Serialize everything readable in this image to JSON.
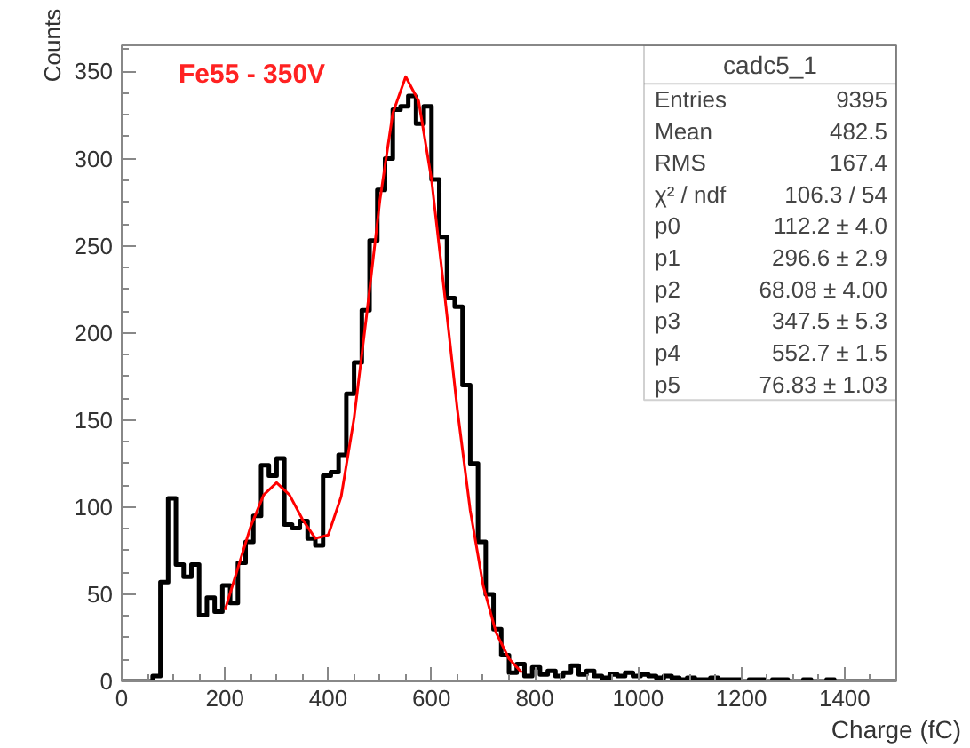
{
  "chart_data": {
    "type": "histogram",
    "xlabel": "Charge (fC)",
    "ylabel": "Counts",
    "bins": [
      0,
      15,
      30,
      45,
      60,
      75,
      90,
      105,
      120,
      135,
      150,
      165,
      180,
      195,
      210,
      225,
      240,
      255,
      270,
      285,
      300,
      315,
      330,
      345,
      360,
      375,
      390,
      405,
      420,
      435,
      450,
      465,
      480,
      495,
      510,
      525,
      540,
      555,
      570,
      585,
      600,
      615,
      630,
      645,
      660,
      675,
      690,
      705,
      720,
      735,
      750,
      765,
      780,
      795,
      810,
      825,
      840,
      855,
      870,
      885,
      900,
      915,
      930,
      945,
      960,
      975,
      990,
      1005,
      1020,
      1035,
      1050,
      1065,
      1080,
      1095,
      1110,
      1125,
      1140,
      1155,
      1170,
      1185,
      1200,
      1215,
      1230,
      1245,
      1260,
      1275,
      1290,
      1305,
      1320,
      1335,
      1350,
      1365,
      1380,
      1395,
      1410,
      1425,
      1440,
      1455,
      1470,
      1485,
      1500
    ],
    "series": [
      {
        "color": "#000000",
        "values": [
          0,
          0,
          0,
          0,
          3,
          57,
          105,
          67,
          60,
          67,
          38,
          48,
          40,
          55,
          45,
          68,
          80,
          95,
          124,
          118,
          128,
          90,
          88,
          92,
          82,
          78,
          118,
          120,
          130,
          165,
          183,
          213,
          253,
          282,
          300,
          328,
          330,
          336,
          320,
          330,
          288,
          255,
          220,
          215,
          170,
          125,
          80,
          50,
          30,
          15,
          5,
          10,
          3,
          8,
          4,
          6,
          3,
          5,
          9,
          4,
          6,
          3,
          2,
          4,
          3,
          5,
          3,
          4,
          3,
          2,
          3,
          2,
          1,
          2,
          1,
          1,
          2,
          1,
          1,
          1,
          0,
          1,
          1,
          0,
          1,
          1,
          0,
          0,
          1,
          0,
          0,
          1,
          0,
          0,
          0,
          0,
          0,
          0,
          0,
          0
        ]
      },
      {
        "type": "line",
        "color": "#ff0000",
        "x": [
          200,
          225,
          250,
          275,
          300,
          325,
          350,
          375,
          400,
          425,
          450,
          475,
          500,
          525,
          550,
          575,
          600,
          625,
          650,
          675,
          700,
          725,
          750,
          775
        ],
        "values": [
          41,
          65,
          89,
          107,
          114,
          107,
          93,
          82,
          84,
          106,
          151,
          212,
          276,
          326,
          347,
          333,
          288,
          223,
          156,
          98,
          55,
          28,
          13,
          5
        ]
      }
    ],
    "xlim": [
      0,
      1500
    ],
    "xticks": [
      0,
      200,
      400,
      600,
      800,
      1000,
      1200,
      1400
    ],
    "ylim": [
      0,
      365
    ],
    "yticks": [
      0,
      50,
      100,
      150,
      200,
      250,
      300,
      350
    ],
    "grid": false,
    "annotations": [
      "Fe55 - 350V",
      "cadc5_1",
      "Entries",
      "9395",
      "Mean",
      "482.5",
      "RMS",
      "167.4",
      "χ² / ndf",
      "106.3 / 54",
      "p0",
      "112.2 ± 4.0",
      "p1",
      "296.6 ± 2.9",
      "p2",
      "68.08 ± 4.00",
      "p3",
      "347.5 ± 5.3",
      "p4",
      "552.7 ± 1.5",
      "p5",
      "76.83 ± 1.03"
    ]
  }
}
